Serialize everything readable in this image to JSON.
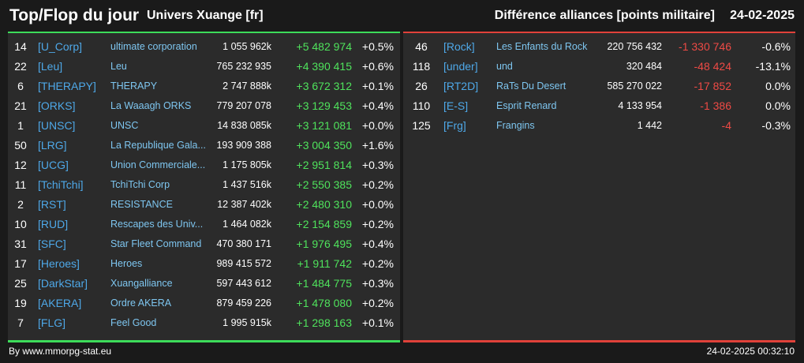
{
  "header": {
    "title": "Top/Flop du jour",
    "subtitle": "Univers Xuange [fr]",
    "right_title": "Différence alliances [points militaire]",
    "date": "24-02-2025"
  },
  "colors": {
    "positive": "#4fe35c",
    "negative": "#ee4a45",
    "tag": "#4ea8e8",
    "name": "#7ec6f0",
    "top_border": "#3ddc5a",
    "flop_border": "#e0413a"
  },
  "top": [
    {
      "rank": "14",
      "tag": "[U_Corp]",
      "name": "ultimate corporation",
      "points": "1 055 962k",
      "diff": "+5 482 974",
      "pct": "+0.5%"
    },
    {
      "rank": "22",
      "tag": "[Leu]",
      "name": "Leu",
      "points": "765 232 935",
      "diff": "+4 390 415",
      "pct": "+0.6%"
    },
    {
      "rank": "6",
      "tag": "[THERAPY]",
      "name": "THERAPY",
      "points": "2 747 888k",
      "diff": "+3 672 312",
      "pct": "+0.1%"
    },
    {
      "rank": "21",
      "tag": "[ORKS]",
      "name": "La Waaagh ORKS",
      "points": "779 207 078",
      "diff": "+3 129 453",
      "pct": "+0.4%"
    },
    {
      "rank": "1",
      "tag": "[UNSC]",
      "name": "UNSC",
      "points": "14 838 085k",
      "diff": "+3 121 081",
      "pct": "+0.0%"
    },
    {
      "rank": "50",
      "tag": "[LRG]",
      "name": "La Republique Gala...",
      "points": "193 909 388",
      "diff": "+3 004 350",
      "pct": "+1.6%"
    },
    {
      "rank": "12",
      "tag": "[UCG]",
      "name": "Union Commerciale...",
      "points": "1 175 805k",
      "diff": "+2 951 814",
      "pct": "+0.3%"
    },
    {
      "rank": "11",
      "tag": "[TchiTchi]",
      "name": "TchiTchi Corp",
      "points": "1 437 516k",
      "diff": "+2 550 385",
      "pct": "+0.2%"
    },
    {
      "rank": "2",
      "tag": "[RST]",
      "name": "RESISTANCE",
      "points": "12 387 402k",
      "diff": "+2 480 310",
      "pct": "+0.0%"
    },
    {
      "rank": "10",
      "tag": "[RUD]",
      "name": "Rescapes des Univ...",
      "points": "1 464 082k",
      "diff": "+2 154 859",
      "pct": "+0.2%"
    },
    {
      "rank": "31",
      "tag": "[SFC]",
      "name": "Star Fleet Command",
      "points": "470 380 171",
      "diff": "+1 976 495",
      "pct": "+0.4%"
    },
    {
      "rank": "17",
      "tag": "[Heroes]",
      "name": "Heroes",
      "points": "989 415 572",
      "diff": "+1 911 742",
      "pct": "+0.2%"
    },
    {
      "rank": "25",
      "tag": "[DarkStar]",
      "name": "Xuangalliance",
      "points": "597 443 612",
      "diff": "+1 484 775",
      "pct": "+0.3%"
    },
    {
      "rank": "19",
      "tag": "[AKERA]",
      "name": "Ordre AKERA",
      "points": "879 459 226",
      "diff": "+1 478 080",
      "pct": "+0.2%"
    },
    {
      "rank": "7",
      "tag": "[FLG]",
      "name": "Feel Good",
      "points": "1 995 915k",
      "diff": "+1 298 163",
      "pct": "+0.1%"
    }
  ],
  "flop": [
    {
      "rank": "46",
      "tag": "[Rock]",
      "name": "Les Enfants du Rock",
      "points": "220 756 432",
      "diff": "-1 330 746",
      "pct": "-0.6%"
    },
    {
      "rank": "118",
      "tag": "[under]",
      "name": "und",
      "points": "320 484",
      "diff": "-48 424",
      "pct": "-13.1%"
    },
    {
      "rank": "26",
      "tag": "[RT2D]",
      "name": "RaTs Du Desert",
      "points": "585 270 022",
      "diff": "-17 852",
      "pct": "0.0%"
    },
    {
      "rank": "110",
      "tag": "[E-S]",
      "name": "Esprit Renard",
      "points": "4 133 954",
      "diff": "-1 386",
      "pct": "0.0%"
    },
    {
      "rank": "125",
      "tag": "[Frg]",
      "name": "Frangins",
      "points": "1 442",
      "diff": "-4",
      "pct": "-0.3%"
    }
  ],
  "footer": {
    "credit": "By www.mmorpg-stat.eu",
    "timestamp": "24-02-2025 00:32:10"
  }
}
